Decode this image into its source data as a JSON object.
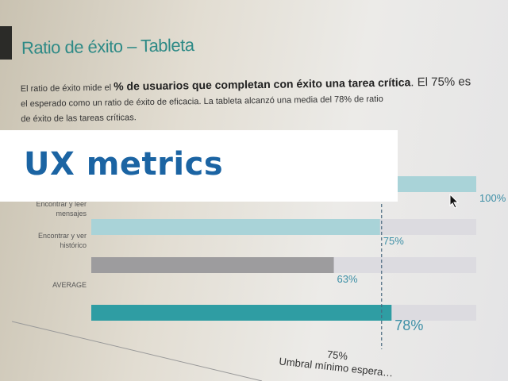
{
  "slide": {
    "title": "Ratio de éxito – Tableta",
    "desc_part1": "El ratio de éxito mide el ",
    "desc_bold": "% de usuarios que completan con éxito una tarea crítica",
    "desc_part2": ". El 75% es",
    "desc_line2": "el esperado como un ratio de éxito de eficacia. La tableta alcanzó una media del 78% de ratio",
    "desc_line3": "de éxito de las tareas críticas."
  },
  "overlay": {
    "title": "UX metrics"
  },
  "chart_data": {
    "type": "bar",
    "orientation": "horizontal",
    "categories": [
      "",
      "Encontrar y leer mensajes",
      "Encontrar y ver histórico",
      "AVERAGE"
    ],
    "values": [
      100,
      75,
      63,
      78
    ],
    "value_labels": [
      "100%",
      "75%",
      "63%",
      "78%"
    ],
    "xlim": [
      0,
      100
    ],
    "threshold": {
      "value": 75,
      "label": "75%",
      "caption": "Umbral mínimo espera…"
    },
    "colors": {
      "bar": "#a9d3d8",
      "gray": "#9d9c9e",
      "average": "#2f9da3",
      "track": "#dcdbe0",
      "label": "#3d8fa6"
    }
  }
}
